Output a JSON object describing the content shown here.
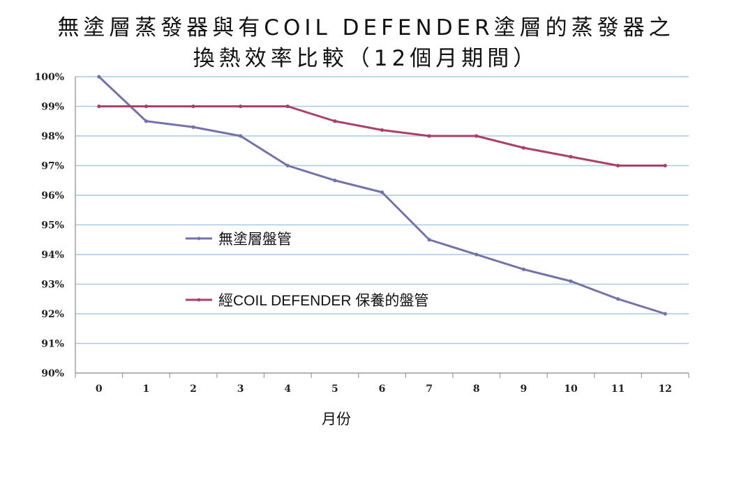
{
  "title_line1": "無塗層蒸發器與有COIL DEFENDER塗層的蒸發器之",
  "title_line2": "換熱效率比較（12個月期間）",
  "chart_data": {
    "type": "line",
    "title": "無塗層蒸發器與有COIL DEFENDER塗層的蒸發器之換熱效率比較（12個月期間）",
    "xlabel": "月份",
    "ylabel": "",
    "x": [
      0,
      1,
      2,
      3,
      4,
      5,
      6,
      7,
      8,
      9,
      10,
      11,
      12
    ],
    "ylim": [
      90,
      100
    ],
    "yticks": [
      "90%",
      "91%",
      "92%",
      "93%",
      "94%",
      "95%",
      "96%",
      "97%",
      "98%",
      "99%",
      "100%"
    ],
    "grid": true,
    "legend_position": "inside-center-left",
    "series": [
      {
        "name": "無塗層盤管",
        "color": "#7272a8",
        "values": [
          100,
          98.5,
          98.3,
          98,
          97,
          96.5,
          96.1,
          94.5,
          94,
          93.5,
          93.1,
          92.5,
          92
        ]
      },
      {
        "name": "經COIL DEFENDER 保養的盤管",
        "color": "#a8406a",
        "values": [
          99,
          99,
          99,
          99,
          99,
          98.5,
          98.2,
          98,
          98,
          97.6,
          97.3,
          97,
          97
        ]
      }
    ],
    "gridline_color": "#a9c8e4",
    "axis_color": "#9a9a9a"
  }
}
